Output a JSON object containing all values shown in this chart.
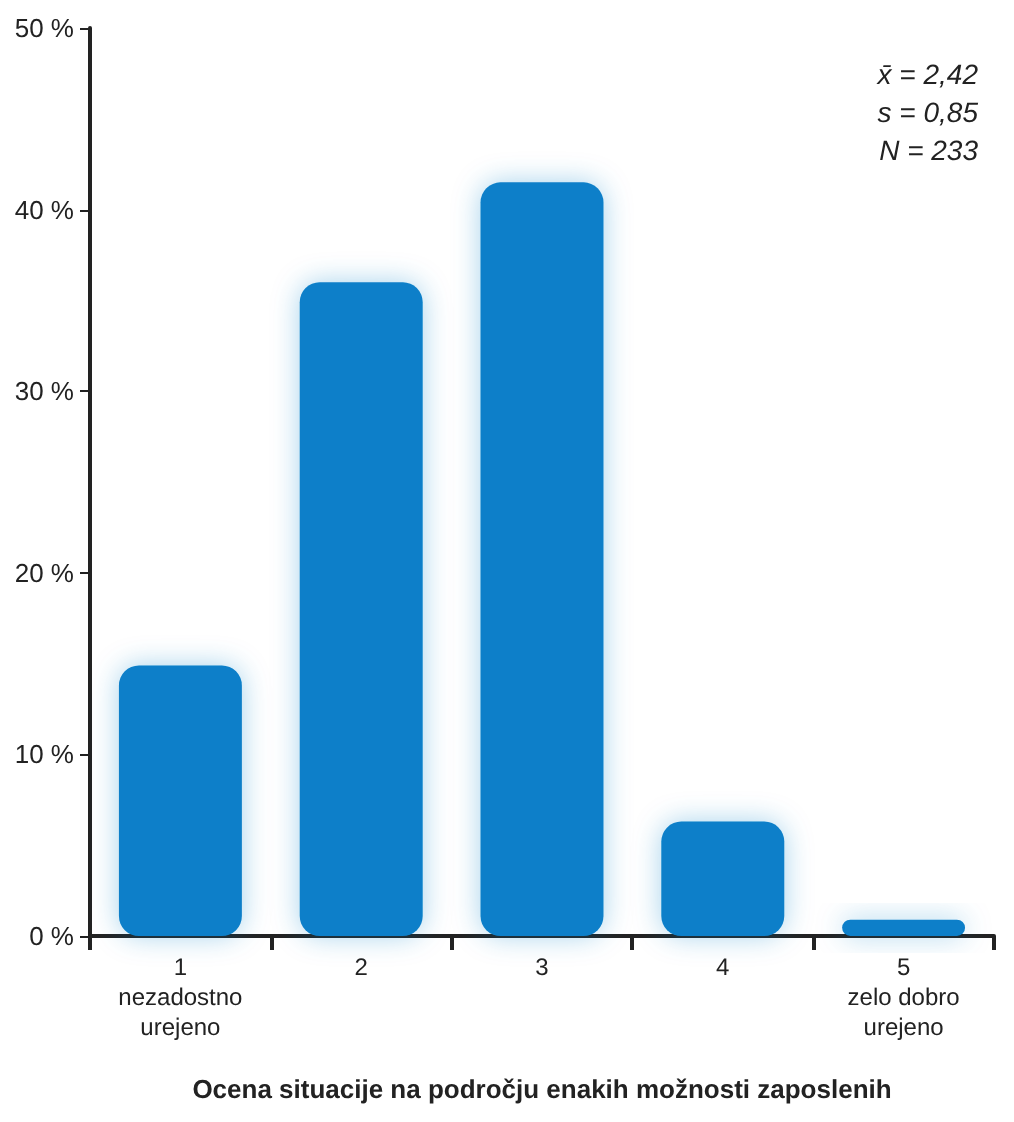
{
  "chart_data": {
    "type": "bar",
    "xlabel": "Ocena situacije na področju enakih možnosti zaposlenih",
    "categories": [
      "1\nnezadostno\nurejeno",
      "2",
      "3",
      "4",
      "5\nzelo dobro\nurejeno"
    ],
    "values": [
      14.9,
      36.0,
      41.5,
      6.3,
      0.9
    ],
    "color": "#0a7fc9",
    "ylim": [
      0,
      50
    ],
    "yticks": [
      {
        "value": 0,
        "label": "0 %"
      },
      {
        "value": 10,
        "label": "10 %"
      },
      {
        "value": 20,
        "label": "20 %"
      },
      {
        "value": 30,
        "label": "30 %"
      },
      {
        "value": 40,
        "label": "40 %"
      },
      {
        "value": 50,
        "label": "50 %"
      }
    ],
    "grid": false,
    "annotations": [
      "x̄ = 2,42",
      "s = 0,85",
      "N = 233"
    ]
  }
}
